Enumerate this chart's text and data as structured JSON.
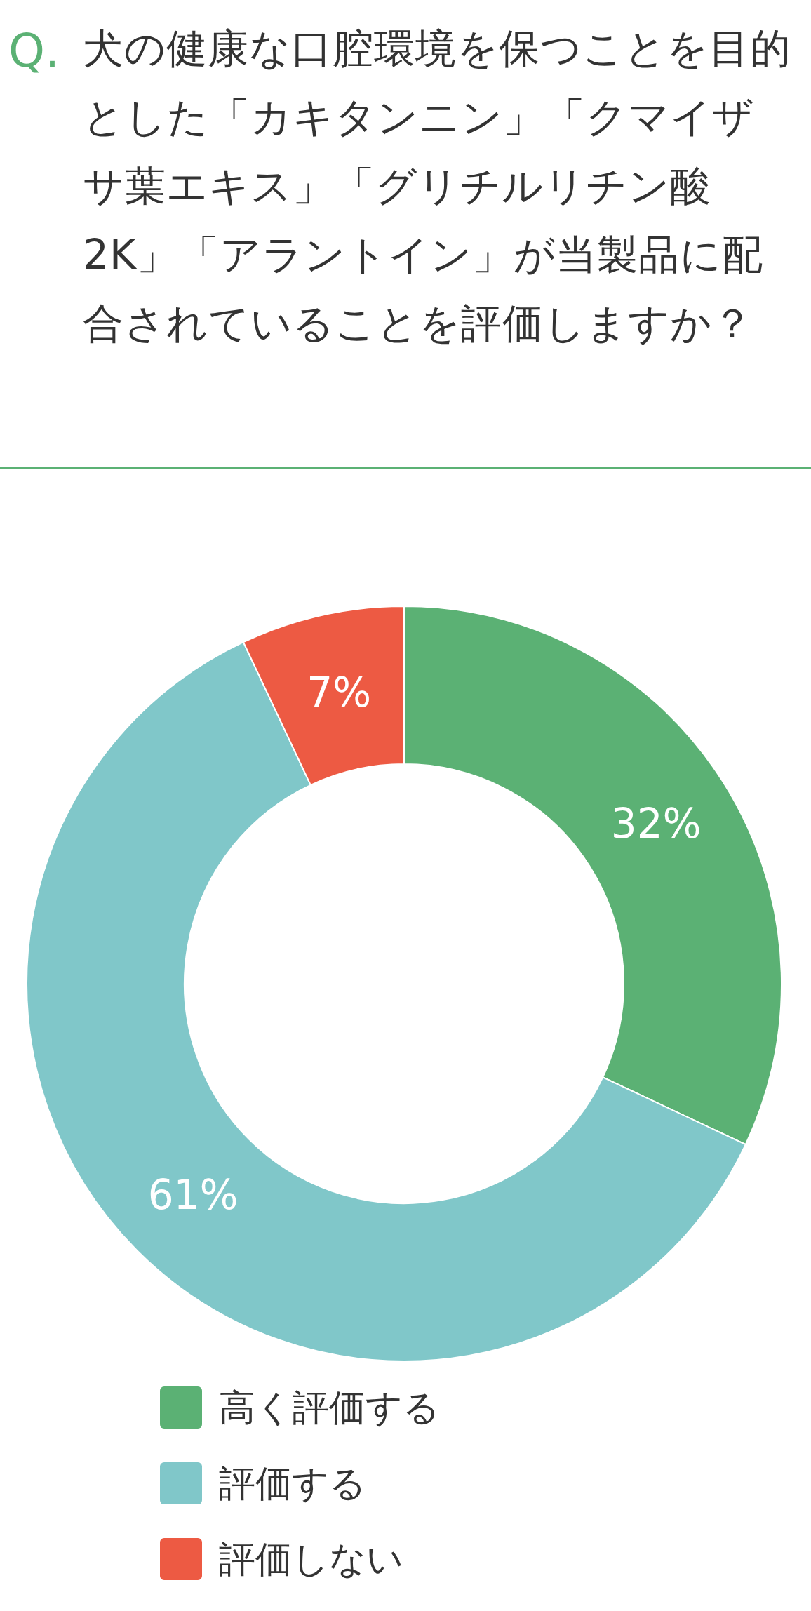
{
  "chart_data": {
    "type": "donut",
    "title": "犬の健康な口腔環境を保つことを目的とした「カキタンニン」「クマイザサ葉エキス」「グリチルリチン酸 2K」「アラントイン」が当製品に配合されていることを評価しますか？",
    "annotations": [
      "Q."
    ],
    "categories": [
      "高く評価する",
      "評価する",
      "評価しない"
    ],
    "values": [
      32,
      61,
      7
    ],
    "colors": [
      "#5bb174",
      "#80c7c9",
      "#ed5a43"
    ],
    "value_labels": [
      "32%",
      "61%",
      "7%"
    ],
    "legend": "bottom"
  }
}
